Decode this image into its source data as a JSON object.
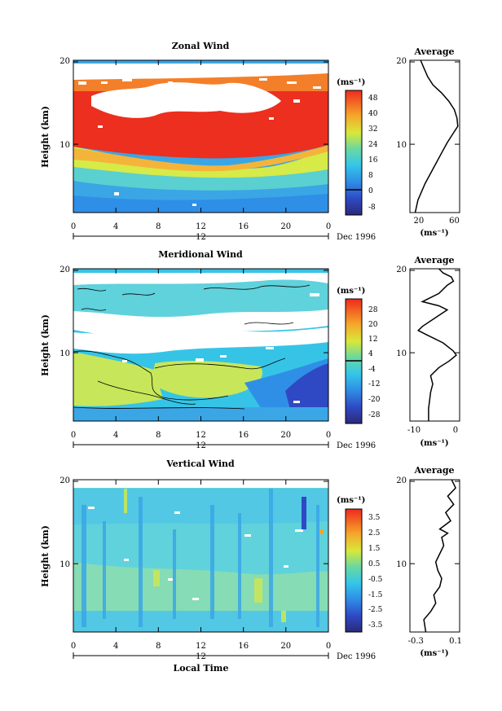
{
  "figure": {
    "xlabel": "Local Time",
    "date_label": "Dec 1996",
    "day_label": "12"
  },
  "chart_data": [
    {
      "type": "heatmap",
      "title": "Zonal Wind",
      "ylabel": "Height (km)",
      "x_ticks": [
        "0",
        "4",
        "8",
        "12",
        "16",
        "20",
        "0"
      ],
      "y_ticks": [
        "10",
        "20"
      ],
      "xlim": [
        0,
        24
      ],
      "ylim": [
        1.5,
        20
      ],
      "unit_label": "(ms⁻¹)",
      "colorbar_ticks": [
        "48",
        "40",
        "32",
        "24",
        "16",
        "8",
        "0",
        "-8"
      ],
      "colorbar_range": [
        -12,
        52
      ],
      "contour_at_zero": true,
      "average": {
        "title": "Average",
        "xlabel": "(ms⁻¹)",
        "x_ticks": [
          "20",
          "60"
        ],
        "xlim": [
          10,
          66
        ],
        "y_ticks": [
          "10",
          "20"
        ],
        "height": [
          1.5,
          3,
          5,
          7,
          9,
          10,
          11,
          12,
          13,
          14,
          15,
          16,
          17,
          18,
          19,
          20
        ],
        "value": [
          16,
          19,
          27,
          37,
          47,
          52,
          58,
          64,
          63,
          60,
          54,
          46,
          36,
          30,
          26,
          22
        ]
      }
    },
    {
      "type": "heatmap",
      "title": "Meridional Wind",
      "ylabel": "Height (km)",
      "x_ticks": [
        "0",
        "4",
        "8",
        "12",
        "16",
        "20",
        "0"
      ],
      "y_ticks": [
        "10",
        "20"
      ],
      "xlim": [
        0,
        24
      ],
      "ylim": [
        1.5,
        20
      ],
      "unit_label": "(ms⁻¹)",
      "colorbar_ticks": [
        "28",
        "20",
        "12",
        "4",
        "-4",
        "-12",
        "-20",
        "-28"
      ],
      "colorbar_range": [
        -32,
        32
      ],
      "contour_at_zero": true,
      "average": {
        "title": "Average",
        "xlabel": "(ms⁻¹)",
        "x_ticks": [
          "-10",
          "0"
        ],
        "xlim": [
          -11,
          1
        ],
        "y_ticks": [
          "10",
          "20"
        ],
        "height": [
          1.5,
          3,
          5,
          6,
          7,
          8,
          8.8,
          9.5,
          10,
          11,
          12,
          12.5,
          13,
          14,
          15,
          15.5,
          16,
          17,
          18,
          18.5,
          19,
          19.5,
          20
        ],
        "value": [
          -6.5,
          -6.5,
          -6.0,
          -5.5,
          -6.0,
          -4.0,
          -1.5,
          0.2,
          -0.5,
          -3.0,
          -7.0,
          -9.0,
          -8.0,
          -5.0,
          -2.0,
          -4.0,
          -8.0,
          -4.0,
          -2.0,
          -0.5,
          -1.0,
          -3.0,
          -4.0
        ]
      }
    },
    {
      "type": "heatmap",
      "title": "Vertical Wind",
      "ylabel": "Height (km)",
      "x_ticks": [
        "0",
        "4",
        "8",
        "12",
        "16",
        "20",
        "0"
      ],
      "y_ticks": [
        "10",
        "20"
      ],
      "xlim": [
        0,
        24
      ],
      "ylim": [
        1.5,
        20
      ],
      "unit_label": "(ms⁻¹)",
      "colorbar_ticks": [
        "3.5",
        "2.5",
        "1.5",
        "0.5",
        "-0.5",
        "-1.5",
        "-2.5",
        "-3.5"
      ],
      "colorbar_range": [
        -4,
        4
      ],
      "contour_at_zero": false,
      "average": {
        "title": "Average",
        "xlabel": "(ms⁻¹)",
        "x_ticks": [
          "-0.3",
          "0.1"
        ],
        "xlim": [
          -0.36,
          0.14
        ],
        "y_ticks": [
          "10",
          "20"
        ],
        "height": [
          1.5,
          3,
          4,
          5,
          6,
          7,
          8,
          9,
          10,
          11,
          12,
          13,
          13.5,
          14,
          15,
          16,
          17,
          18,
          19,
          20
        ],
        "value": [
          -0.2,
          -0.22,
          -0.15,
          -0.1,
          -0.12,
          -0.06,
          -0.04,
          -0.08,
          -0.1,
          -0.06,
          -0.02,
          -0.04,
          0.02,
          -0.06,
          0.05,
          0.0,
          0.08,
          0.02,
          0.1,
          0.06
        ]
      }
    }
  ]
}
